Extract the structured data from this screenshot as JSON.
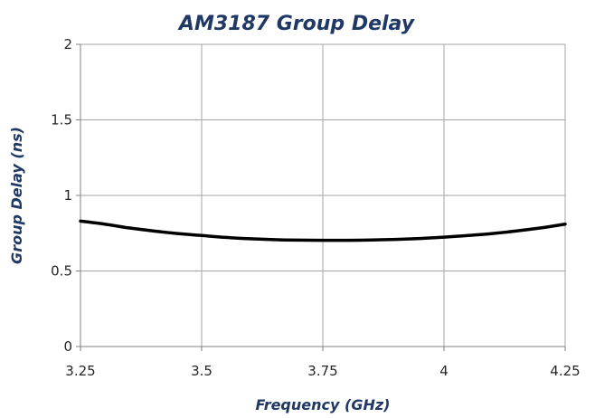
{
  "chart_data": {
    "type": "line",
    "title": "AM3187 Group Delay",
    "xlabel": "Frequency (GHz)",
    "ylabel": "Group Delay (ns)",
    "xlim": [
      3.25,
      4.25
    ],
    "ylim": [
      0,
      2
    ],
    "x_ticks": [
      3.25,
      3.5,
      3.75,
      4,
      4.25
    ],
    "x_tick_labels": [
      "3.25",
      "3.5",
      "3.75",
      "4",
      "4.25"
    ],
    "y_ticks": [
      0,
      0.5,
      1,
      1.5,
      2
    ],
    "y_tick_labels": [
      "0",
      "0.5",
      "1",
      "1.5",
      "2"
    ],
    "grid": true,
    "legend": "none",
    "series": [
      {
        "color": "#000000",
        "x": [
          3.25,
          3.3,
          3.35,
          3.4,
          3.45,
          3.5,
          3.55,
          3.6,
          3.65,
          3.7,
          3.75,
          3.8,
          3.85,
          3.9,
          3.95,
          4.0,
          4.05,
          4.1,
          4.15,
          4.2,
          4.25
        ],
        "y": [
          0.83,
          0.81,
          0.785,
          0.765,
          0.748,
          0.735,
          0.722,
          0.713,
          0.707,
          0.704,
          0.703,
          0.703,
          0.705,
          0.709,
          0.715,
          0.724,
          0.735,
          0.748,
          0.765,
          0.785,
          0.81
        ]
      }
    ]
  }
}
